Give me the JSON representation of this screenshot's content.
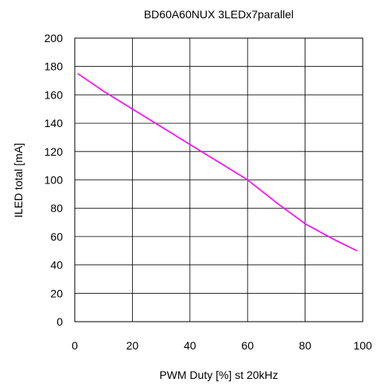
{
  "chart_data": {
    "type": "line",
    "title": "BD60A60NUX 3LEDx7parallel",
    "xlabel": "PWM Duty  [%] st 20kHz",
    "ylabel": "ILED total [mA]",
    "xlim": [
      0,
      100
    ],
    "ylim": [
      0,
      200
    ],
    "x_ticks": [
      "0",
      "20",
      "40",
      "60",
      "80",
      "100"
    ],
    "y_ticks": [
      "0",
      "20",
      "40",
      "60",
      "80",
      "100",
      "120",
      "140",
      "160",
      "180",
      "200"
    ],
    "grid": true,
    "series": [
      {
        "color": "#ff00ff",
        "x": [
          1,
          10,
          20,
          30,
          40,
          50,
          60,
          70,
          80,
          90,
          98
        ],
        "y": [
          175,
          162.5,
          150,
          137.5,
          125,
          112.5,
          100,
          84,
          69,
          58,
          50
        ]
      }
    ]
  }
}
